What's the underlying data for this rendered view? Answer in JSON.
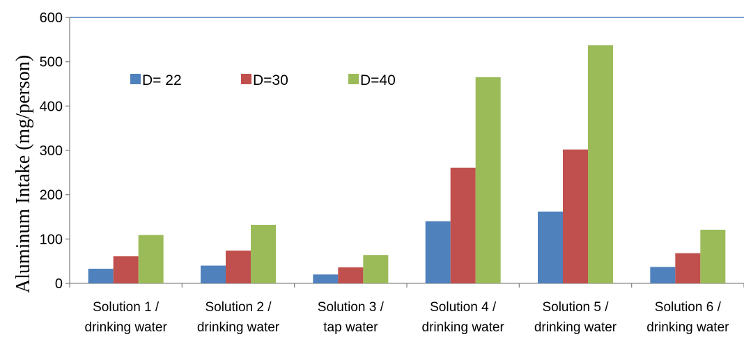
{
  "chart_data": {
    "type": "bar",
    "ylabel": "Aluminum Intake (mg/person)",
    "xlabel": "",
    "ylim": [
      0,
      600
    ],
    "yticks": [
      0,
      100,
      200,
      300,
      400,
      500,
      600
    ],
    "grid": false,
    "legend_position": "top-left",
    "categories": [
      [
        "Solution 1 /",
        "drinking water"
      ],
      [
        "Solution 2 /",
        "drinking water"
      ],
      [
        "Solution 3 /",
        "tap water"
      ],
      [
        "Solution 4 /",
        "drinking water"
      ],
      [
        "Solution 5 /",
        "drinking water"
      ],
      [
        "Solution 6 /",
        "drinking water"
      ]
    ],
    "series": [
      {
        "name": "D= 22",
        "color": "#4F81BD",
        "values": [
          33,
          40,
          20,
          140,
          162,
          37
        ]
      },
      {
        "name": "D=30",
        "color": "#C0504D",
        "values": [
          61,
          74,
          36,
          261,
          302,
          68
        ]
      },
      {
        "name": "D=40",
        "color": "#9BBB59",
        "values": [
          109,
          132,
          64,
          465,
          537,
          121
        ]
      }
    ]
  }
}
